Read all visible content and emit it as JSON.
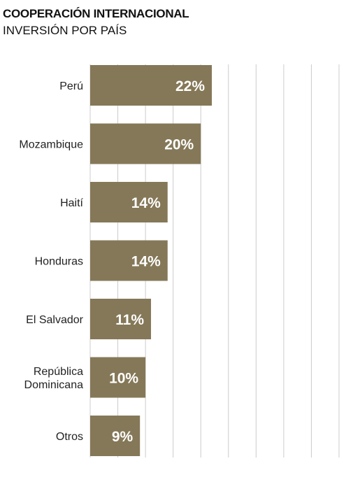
{
  "header": {
    "title": "COOPERACIÓN INTERNACIONAL",
    "subtitle": "INVERSIÓN POR PAÍS"
  },
  "chart_data": {
    "type": "bar",
    "orientation": "horizontal",
    "title": "COOPERACIÓN INTERNACIONAL",
    "subtitle": "INVERSIÓN POR PAÍS",
    "categories": [
      [
        "Perú"
      ],
      [
        "Mozambique"
      ],
      [
        "Haití"
      ],
      [
        "Honduras"
      ],
      [
        "El Salvador"
      ],
      [
        "República",
        "Dominicana"
      ],
      [
        "Otros"
      ]
    ],
    "values": [
      22,
      20,
      14,
      14,
      11,
      10,
      9
    ],
    "value_labels": [
      "22%",
      "20%",
      "14%",
      "14%",
      "11%",
      "10%",
      "9%"
    ],
    "xlim": [
      0,
      45
    ],
    "grid": true,
    "bar_color": "#857858",
    "grid_color": "#cccccc",
    "value_label_color": "#ffffff"
  }
}
